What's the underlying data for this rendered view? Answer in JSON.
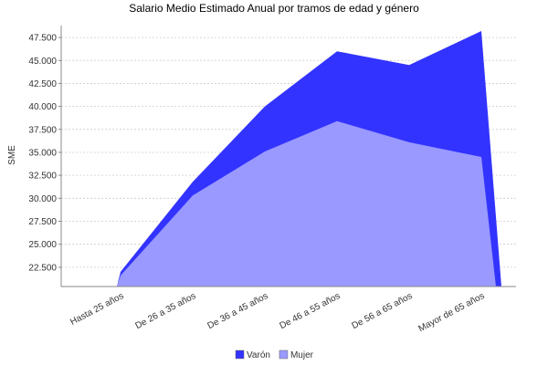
{
  "chart_data": {
    "type": "area",
    "title": "Salario Medio Estimado Anual por tramos de edad y género",
    "y_label": "SME",
    "categories": [
      "Hasta 25  años",
      "De 26  a 35  años",
      "De 36  a 45  años",
      "De 46  a 55  años",
      "De 56  a 65  años",
      "Mayor de 65  años"
    ],
    "series": [
      {
        "name": "Varón",
        "color": "#3333ff",
        "values": [
          22000,
          31800,
          40000,
          46000,
          44500,
          48200
        ]
      },
      {
        "name": "Mujer",
        "color": "#9999ff",
        "values": [
          21600,
          30300,
          35100,
          38400,
          36100,
          34500
        ]
      }
    ],
    "ylim": [
      20400,
      48800
    ],
    "yticks": [
      {
        "value": 22500,
        "label": "22.500"
      },
      {
        "value": 25000,
        "label": "25.000"
      },
      {
        "value": 27500,
        "label": "27.500"
      },
      {
        "value": 30000,
        "label": "30.000"
      },
      {
        "value": 32500,
        "label": "32.500"
      },
      {
        "value": 35000,
        "label": "35.000"
      },
      {
        "value": 37500,
        "label": "37.500"
      },
      {
        "value": 40000,
        "label": "40.000"
      },
      {
        "value": 42500,
        "label": "42.500"
      },
      {
        "value": 45000,
        "label": "45.000"
      },
      {
        "value": 47500,
        "label": "47.500"
      }
    ],
    "grid": true
  }
}
